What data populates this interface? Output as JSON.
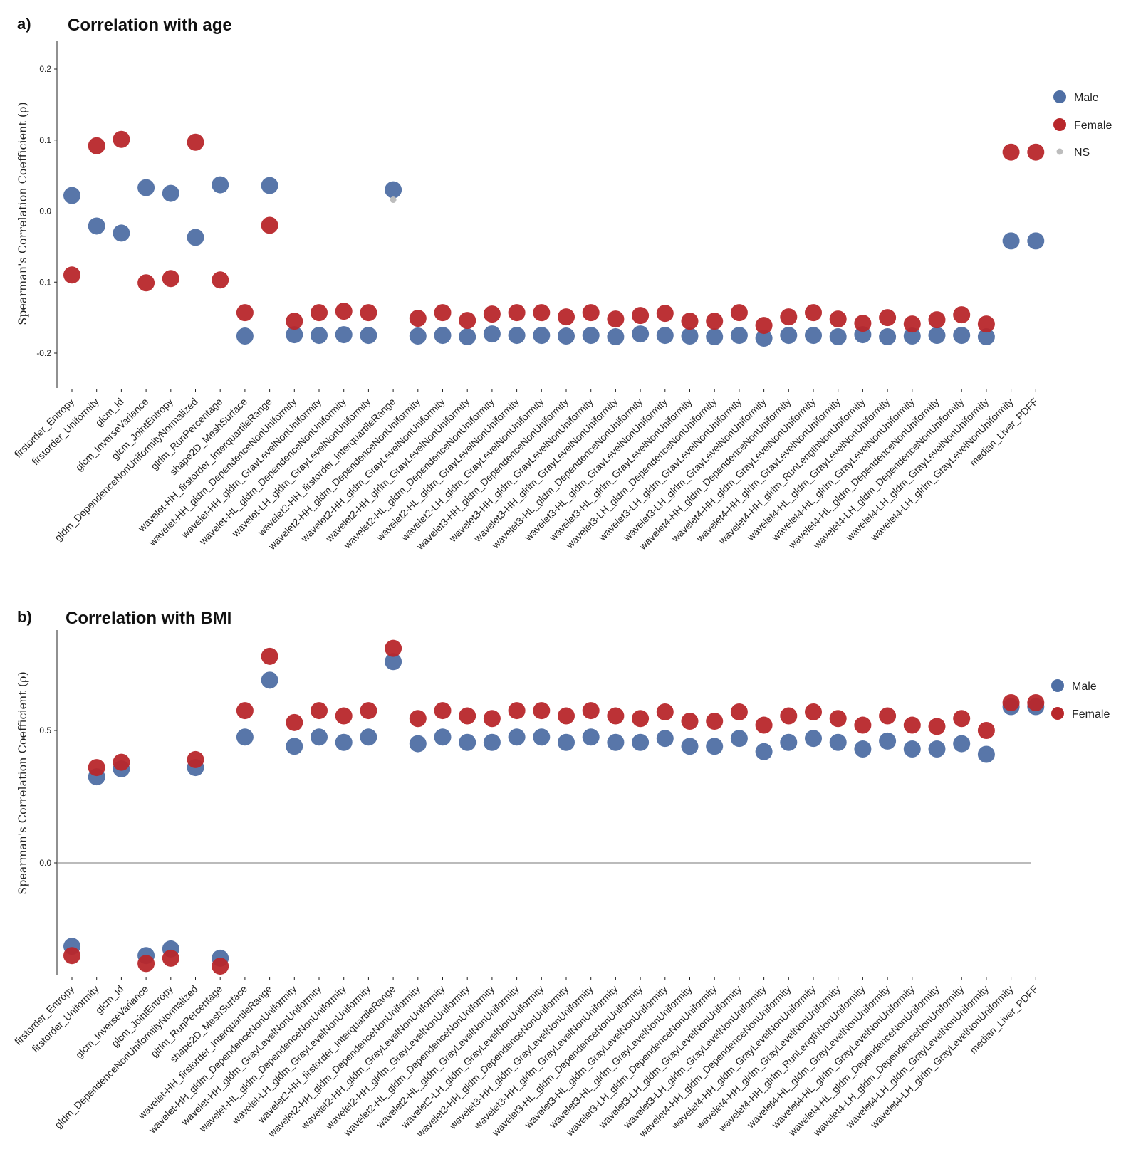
{
  "features": [
    "firstorder_Entropy",
    "firstorder_Uniformity",
    "glcm_Id",
    "glcm_InverseVariance",
    "glcm_JointEntropy",
    "gldm_DependenceNonUniformityNormalized",
    "glrlm_RunPercentage",
    "shape2D_MeshSurface",
    "wavelet-HH_firstorder_InterquartileRange",
    "wavelet-HH_gldm_DependenceNonUniformity",
    "wavelet-HH_gldm_GrayLevelNonUniformity",
    "wavelet-HL_gldm_DependenceNonUniformity",
    "wavelet-LH_gldm_GrayLevelNonUniformity",
    "wavelet2-HH_firstorder_InterquartileRange",
    "wavelet2-HH_gldm_DependenceNonUniformity",
    "wavelet2-HH_gldm_GrayLevelNonUniformity",
    "wavelet2-HH_glrlm_GrayLevelNonUniformity",
    "wavelet2-HL_gldm_DependenceNonUniformity",
    "wavelet2-HL_gldm_GrayLevelNonUniformity",
    "wavelet2-LH_gldm_GrayLevelNonUniformity",
    "wavelet3-HH_gldm_DependenceNonUniformity",
    "wavelet3-HH_gldm_GrayLevelNonUniformity",
    "wavelet3-HH_glrlm_GrayLevelNonUniformity",
    "wavelet3-HL_gldm_DependenceNonUniformity",
    "wavelet3-HL_gldm_GrayLevelNonUniformity",
    "wavelet3-HL_glrlm_GrayLevelNonUniformity",
    "wavelet3-LH_gldm_DependenceNonUniformity",
    "wavelet3-LH_gldm_GrayLevelNonUniformity",
    "wavelet3-LH_glrlm_GrayLevelNonUniformity",
    "wavelet4-HH_gldm_DependenceNonUniformity",
    "wavelet4-HH_gldm_GrayLevelNonUniformity",
    "wavelet4-HH_glrlm_GrayLevelNonUniformity",
    "wavelet4-HH_glrlm_RunLengthNonUniformity",
    "wavelet4-HL_gldm_GrayLevelNonUniformity",
    "wavelet4-HL_glrlm_GrayLevelNonUniformity",
    "wavelet4-HL_gldm_DependenceNonUniformity",
    "wavelet4-LH_gldm_DependenceNonUniformity",
    "wavelet4-LH_gldm_GrayLevelNonUniformity",
    "wavelet4-LH_glrlm_GrayLevelNonUniformity",
    "median_Liver_PDFF"
  ],
  "colors": {
    "male": "#4f6fa4",
    "female": "#b8272b",
    "ns": "#bdbdbd",
    "axis": "#222222",
    "zero": "#777777"
  },
  "chart_data": [
    {
      "type": "scatter",
      "panel_label": "a)",
      "title": "Correlation with age",
      "ylabel": "Spearman's Correlation Coefficient  (ρ)",
      "ylim": [
        -0.24,
        0.24
      ],
      "yticks": [
        -0.2,
        -0.1,
        0.0,
        0.1,
        0.2
      ],
      "ytick_labels": [
        "-0.2",
        "-0.1",
        "0.0",
        "0.1",
        "0.2"
      ],
      "legend": {
        "position": "right",
        "entries": [
          "Male",
          "Female",
          "NS"
        ]
      },
      "series": [
        {
          "name": "Male",
          "values": [
            0.022,
            -0.021,
            -0.031,
            0.033,
            0.025,
            -0.037,
            0.037,
            -0.176,
            0.036,
            -0.174,
            -0.175,
            -0.174,
            -0.175,
            0.03,
            -0.176,
            -0.175,
            -0.177,
            -0.173,
            -0.175,
            -0.175,
            -0.176,
            -0.175,
            -0.177,
            -0.173,
            -0.175,
            -0.176,
            -0.177,
            -0.175,
            -0.179,
            -0.175,
            -0.175,
            -0.177,
            -0.174,
            -0.177,
            -0.176,
            -0.175,
            -0.175,
            -0.177,
            -0.042,
            -0.042
          ],
          "significant": [
            true,
            true,
            true,
            true,
            true,
            true,
            true,
            true,
            true,
            true,
            true,
            true,
            true,
            true,
            true,
            true,
            true,
            true,
            true,
            true,
            true,
            true,
            true,
            true,
            true,
            true,
            true,
            true,
            true,
            true,
            true,
            true,
            true,
            true,
            true,
            true,
            true,
            true,
            true,
            true
          ]
        },
        {
          "name": "Female",
          "values": [
            -0.09,
            0.092,
            0.101,
            -0.101,
            -0.095,
            0.097,
            -0.097,
            -0.143,
            -0.02,
            -0.155,
            -0.143,
            -0.141,
            -0.143,
            0.016,
            -0.151,
            -0.143,
            -0.154,
            -0.145,
            -0.143,
            -0.143,
            -0.149,
            -0.143,
            -0.152,
            -0.147,
            -0.144,
            -0.155,
            -0.155,
            -0.143,
            -0.161,
            -0.149,
            -0.143,
            -0.152,
            -0.158,
            -0.15,
            -0.159,
            -0.153,
            -0.146,
            -0.159,
            0.083,
            0.083
          ],
          "significant": [
            true,
            true,
            true,
            true,
            true,
            true,
            true,
            true,
            true,
            true,
            true,
            true,
            true,
            false,
            true,
            true,
            true,
            true,
            true,
            true,
            true,
            true,
            true,
            true,
            true,
            true,
            true,
            true,
            true,
            true,
            true,
            true,
            true,
            true,
            true,
            true,
            true,
            true,
            true,
            true
          ]
        }
      ]
    },
    {
      "type": "scatter",
      "panel_label": "b)",
      "title": "Correlation with BMI",
      "ylabel": "Spearman's Correlation Coefficient  (ρ)",
      "ylim": [
        -0.45,
        0.87
      ],
      "yticks": [
        0.0,
        0.5
      ],
      "ytick_labels": [
        "0.0",
        "0.5"
      ],
      "legend": {
        "position": "right",
        "entries": [
          "Male",
          "Female"
        ]
      },
      "series": [
        {
          "name": "Male",
          "values": [
            -0.315,
            0.325,
            0.355,
            -0.35,
            -0.325,
            0.36,
            -0.36,
            0.475,
            0.69,
            0.44,
            0.475,
            0.455,
            0.475,
            0.76,
            0.45,
            0.475,
            0.455,
            0.455,
            0.475,
            0.475,
            0.455,
            0.475,
            0.455,
            0.455,
            0.47,
            0.44,
            0.44,
            0.47,
            0.42,
            0.455,
            0.47,
            0.455,
            0.43,
            0.46,
            0.43,
            0.43,
            0.45,
            0.41,
            0.59,
            0.59
          ],
          "significant": [
            true,
            true,
            true,
            true,
            true,
            true,
            true,
            true,
            true,
            true,
            true,
            true,
            true,
            true,
            true,
            true,
            true,
            true,
            true,
            true,
            true,
            true,
            true,
            true,
            true,
            true,
            true,
            true,
            true,
            true,
            true,
            true,
            true,
            true,
            true,
            true,
            true,
            true,
            true,
            true
          ]
        },
        {
          "name": "Female",
          "values": [
            -0.35,
            0.36,
            0.38,
            -0.38,
            -0.36,
            0.39,
            -0.39,
            0.575,
            0.78,
            0.53,
            0.575,
            0.555,
            0.575,
            0.81,
            0.545,
            0.575,
            0.555,
            0.545,
            0.575,
            0.575,
            0.555,
            0.575,
            0.555,
            0.545,
            0.57,
            0.535,
            0.535,
            0.57,
            0.52,
            0.555,
            0.57,
            0.545,
            0.52,
            0.555,
            0.52,
            0.515,
            0.545,
            0.5,
            0.605,
            0.605
          ],
          "significant": [
            true,
            true,
            true,
            true,
            true,
            true,
            true,
            true,
            true,
            true,
            true,
            true,
            true,
            true,
            true,
            true,
            true,
            true,
            true,
            true,
            true,
            true,
            true,
            true,
            true,
            true,
            true,
            true,
            true,
            true,
            true,
            true,
            true,
            true,
            true,
            true,
            true,
            true,
            true,
            true
          ]
        }
      ]
    }
  ]
}
